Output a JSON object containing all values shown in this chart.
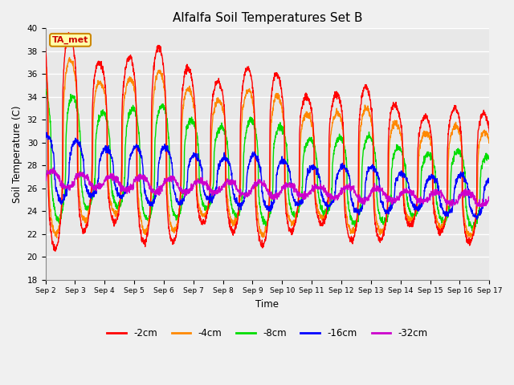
{
  "title": "Alfalfa Soil Temperatures Set B",
  "xlabel": "Time",
  "ylabel": "Soil Temperature (C)",
  "ylim": [
    18,
    40
  ],
  "yticks": [
    18,
    20,
    22,
    24,
    26,
    28,
    30,
    32,
    34,
    36,
    38,
    40
  ],
  "n_days": 15,
  "pts_per_day": 144,
  "colors": {
    "2cm": "#ff0000",
    "4cm": "#ff8800",
    "8cm": "#00dd00",
    "16cm": "#0000ff",
    "32cm": "#cc00cc"
  },
  "plot_bg_color": "#e8e8e8",
  "grid_color": "#ffffff",
  "annotation_text": "TA_met",
  "annotation_text_color": "#cc0000",
  "annotation_bg": "#ffffaa",
  "annotation_edge": "#cc8800",
  "legend_labels": [
    "-2cm",
    "-4cm",
    "-8cm",
    "-16cm",
    "-32cm"
  ],
  "legend_keys": [
    "2cm",
    "4cm",
    "8cm",
    "16cm",
    "32cm"
  ],
  "x_labels": [
    "Sep 2",
    "Sep 3",
    "Sep 4",
    "Sep 5",
    "Sep 6",
    "Sep 7",
    "Sep 8",
    "Sep 9",
    "Sep 10",
    "Sep 11",
    "Sep 12",
    "Sep 13",
    "Sep 14",
    "Sep 15",
    "Sep 16",
    "Sep 17"
  ]
}
